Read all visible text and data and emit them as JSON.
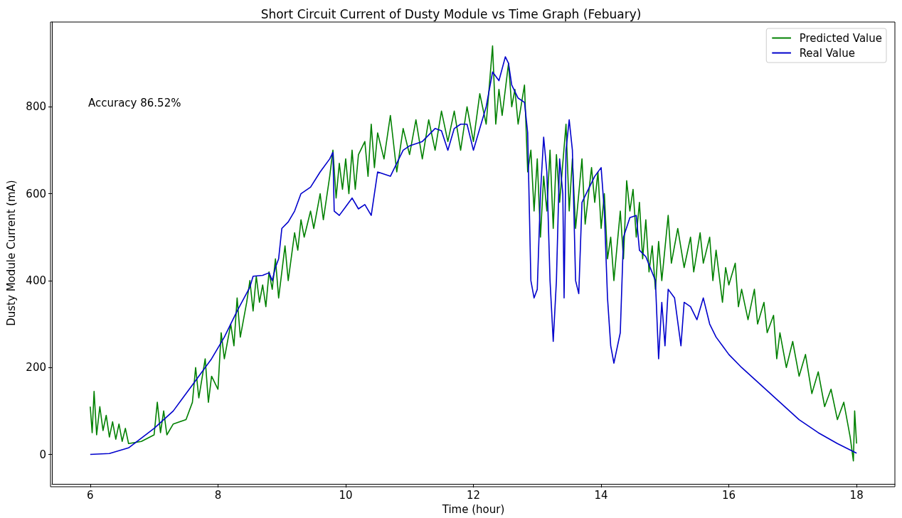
{
  "chart_data": {
    "type": "line",
    "title": "Short Circuit Current of Dusty Module vs Time Graph (Febuary)",
    "xlabel": "Time (hour)",
    "ylabel": "Dusty Module Current (mA)",
    "annotations": [
      "Accuracy 86.52%"
    ],
    "xlim": [
      5.4,
      18.6
    ],
    "ylim": [
      -68,
      995
    ],
    "xticks": [
      6,
      8,
      10,
      12,
      14,
      16,
      18
    ],
    "yticks": [
      0,
      200,
      400,
      600,
      800
    ],
    "grid": false,
    "legend": "top right",
    "marker": "none",
    "line_style": "solid",
    "series": [
      {
        "name": "Predicted Value",
        "color": "#008000",
        "x": [
          6.0,
          6.03,
          6.06,
          6.1,
          6.15,
          6.2,
          6.25,
          6.3,
          6.35,
          6.4,
          6.45,
          6.5,
          6.55,
          6.6,
          6.8,
          7.0,
          7.05,
          7.1,
          7.15,
          7.2,
          7.3,
          7.5,
          7.6,
          7.65,
          7.7,
          7.8,
          7.85,
          7.9,
          8.0,
          8.05,
          8.1,
          8.2,
          8.25,
          8.3,
          8.35,
          8.45,
          8.5,
          8.55,
          8.6,
          8.65,
          8.7,
          8.75,
          8.8,
          8.85,
          8.9,
          8.95,
          9.0,
          9.05,
          9.1,
          9.2,
          9.25,
          9.3,
          9.35,
          9.45,
          9.5,
          9.6,
          9.65,
          9.75,
          9.8,
          9.85,
          9.9,
          9.95,
          10.0,
          10.05,
          10.1,
          10.15,
          10.2,
          10.3,
          10.35,
          10.4,
          10.45,
          10.5,
          10.6,
          10.7,
          10.8,
          10.9,
          11.0,
          11.1,
          11.2,
          11.3,
          11.4,
          11.5,
          11.6,
          11.7,
          11.8,
          11.9,
          12.0,
          12.1,
          12.2,
          12.3,
          12.35,
          12.4,
          12.45,
          12.55,
          12.6,
          12.65,
          12.7,
          12.8,
          12.85,
          12.9,
          12.95,
          13.0,
          13.05,
          13.1,
          13.15,
          13.2,
          13.25,
          13.3,
          13.35,
          13.45,
          13.5,
          13.55,
          13.6,
          13.7,
          13.75,
          13.85,
          13.9,
          13.95,
          14.0,
          14.05,
          14.1,
          14.15,
          14.2,
          14.3,
          14.35,
          14.4,
          14.45,
          14.5,
          14.55,
          14.6,
          14.65,
          14.7,
          14.75,
          14.8,
          14.85,
          14.9,
          14.95,
          15.05,
          15.1,
          15.2,
          15.3,
          15.4,
          15.45,
          15.55,
          15.6,
          15.7,
          15.75,
          15.8,
          15.9,
          15.95,
          16.0,
          16.1,
          16.15,
          16.2,
          16.3,
          16.4,
          16.45,
          16.55,
          16.6,
          16.7,
          16.75,
          16.8,
          16.9,
          17.0,
          17.1,
          17.2,
          17.3,
          17.4,
          17.5,
          17.6,
          17.7,
          17.8,
          17.9,
          17.95,
          17.97,
          18.0
        ],
        "values": [
          110,
          50,
          145,
          45,
          110,
          55,
          90,
          40,
          75,
          35,
          70,
          30,
          60,
          25,
          30,
          45,
          120,
          50,
          100,
          45,
          70,
          80,
          120,
          200,
          130,
          220,
          120,
          180,
          150,
          280,
          220,
          300,
          250,
          360,
          270,
          350,
          400,
          330,
          410,
          350,
          390,
          340,
          420,
          380,
          450,
          360,
          420,
          480,
          400,
          510,
          470,
          540,
          500,
          560,
          520,
          600,
          540,
          640,
          700,
          590,
          670,
          610,
          680,
          600,
          700,
          610,
          690,
          720,
          640,
          760,
          660,
          740,
          680,
          780,
          650,
          750,
          690,
          770,
          680,
          770,
          700,
          790,
          720,
          790,
          700,
          800,
          720,
          830,
          760,
          940,
          760,
          840,
          780,
          900,
          800,
          840,
          760,
          850,
          650,
          700,
          560,
          680,
          500,
          640,
          560,
          700,
          520,
          690,
          580,
          760,
          560,
          680,
          520,
          680,
          530,
          660,
          580,
          650,
          520,
          600,
          450,
          500,
          400,
          560,
          450,
          630,
          560,
          610,
          500,
          580,
          450,
          540,
          420,
          480,
          380,
          490,
          400,
          550,
          440,
          520,
          430,
          500,
          420,
          510,
          440,
          500,
          400,
          470,
          350,
          430,
          390,
          440,
          340,
          380,
          310,
          380,
          300,
          350,
          280,
          320,
          220,
          280,
          200,
          260,
          180,
          230,
          140,
          190,
          110,
          150,
          80,
          120,
          40,
          -15,
          100,
          25
        ]
      },
      {
        "name": "Real Value",
        "color": "#0000cc",
        "x": [
          6.0,
          6.3,
          6.6,
          7.0,
          7.3,
          7.6,
          7.9,
          8.1,
          8.3,
          8.5,
          8.55,
          8.7,
          8.8,
          8.85,
          8.9,
          8.95,
          9.0,
          9.1,
          9.2,
          9.3,
          9.45,
          9.6,
          9.75,
          9.8,
          9.82,
          9.9,
          10.0,
          10.1,
          10.2,
          10.3,
          10.4,
          10.5,
          10.7,
          10.9,
          11.0,
          11.2,
          11.4,
          11.5,
          11.6,
          11.7,
          11.8,
          11.9,
          12.0,
          12.1,
          12.2,
          12.3,
          12.4,
          12.5,
          12.55,
          12.6,
          12.7,
          12.8,
          12.85,
          12.9,
          12.95,
          13.0,
          13.05,
          13.1,
          13.15,
          13.2,
          13.25,
          13.3,
          13.35,
          13.4,
          13.42,
          13.45,
          13.5,
          13.55,
          13.6,
          13.65,
          13.7,
          13.8,
          13.9,
          14.0,
          14.05,
          14.1,
          14.15,
          14.2,
          14.3,
          14.35,
          14.45,
          14.55,
          14.6,
          14.7,
          14.85,
          14.9,
          14.95,
          15.0,
          15.05,
          15.15,
          15.25,
          15.3,
          15.4,
          15.5,
          15.6,
          15.7,
          15.8,
          16.0,
          16.2,
          16.5,
          16.8,
          17.1,
          17.4,
          17.7,
          18.0
        ],
        "values": [
          0,
          2,
          15,
          60,
          100,
          160,
          220,
          270,
          330,
          385,
          410,
          412,
          418,
          400,
          430,
          450,
          520,
          535,
          560,
          600,
          615,
          650,
          680,
          695,
          560,
          550,
          570,
          590,
          565,
          575,
          550,
          650,
          640,
          700,
          710,
          720,
          750,
          745,
          700,
          750,
          760,
          760,
          700,
          750,
          800,
          880,
          860,
          915,
          900,
          850,
          820,
          810,
          740,
          400,
          360,
          380,
          600,
          730,
          650,
          400,
          260,
          400,
          680,
          600,
          360,
          700,
          770,
          700,
          400,
          370,
          580,
          610,
          640,
          660,
          560,
          360,
          250,
          210,
          280,
          500,
          545,
          550,
          470,
          455,
          400,
          220,
          350,
          250,
          380,
          360,
          250,
          350,
          340,
          310,
          360,
          300,
          270,
          230,
          200,
          160,
          120,
          80,
          50,
          25,
          3
        ]
      }
    ]
  }
}
